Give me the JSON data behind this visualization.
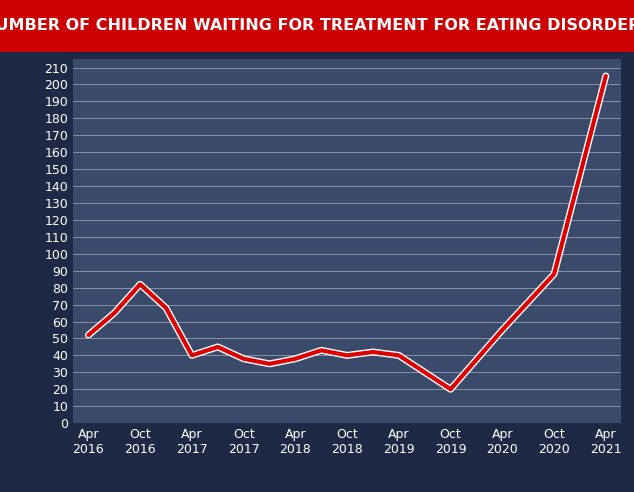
{
  "title": "NUMBER OF CHILDREN WAITING FOR TREATMENT FOR EATING DISORDERS",
  "title_bg_color": "#cc0000",
  "title_text_color": "#ffffff",
  "bg_color": "#1e2a45",
  "plot_bg_color": "#3a4a6b",
  "grid_color": "#ffffff",
  "line_color": "#dd0000",
  "line_outline_color": "#ffffff",
  "x_labels": [
    "Apr\n2016",
    "Oct\n2016",
    "Apr\n2017",
    "Oct\n2017",
    "Apr\n2018",
    "Oct\n2018",
    "Apr\n2019",
    "Oct\n2019",
    "Apr\n2020",
    "Oct\n2020",
    "Apr\n2021"
  ],
  "x_tick_positions": [
    0,
    1,
    2,
    3,
    4,
    5,
    6,
    7,
    8,
    9,
    10
  ],
  "y_values": [
    52,
    65,
    82,
    68,
    40,
    45,
    38,
    35,
    38,
    43,
    40,
    42,
    40,
    20,
    55,
    88,
    205
  ],
  "x_data": [
    0,
    0.5,
    1,
    1.5,
    2,
    2.5,
    3,
    3.5,
    4,
    4.5,
    5,
    5.5,
    6,
    7,
    8,
    9,
    10
  ],
  "ylim": [
    0,
    215
  ],
  "yticks": [
    0,
    10,
    20,
    30,
    40,
    50,
    60,
    70,
    80,
    90,
    100,
    110,
    120,
    130,
    140,
    150,
    160,
    170,
    180,
    190,
    200,
    210
  ],
  "tick_color": "#ffffff",
  "tick_fontsize": 9,
  "title_fontsize": 11.5,
  "outer_border_color": "#1e2a45",
  "border_color": "#444466"
}
